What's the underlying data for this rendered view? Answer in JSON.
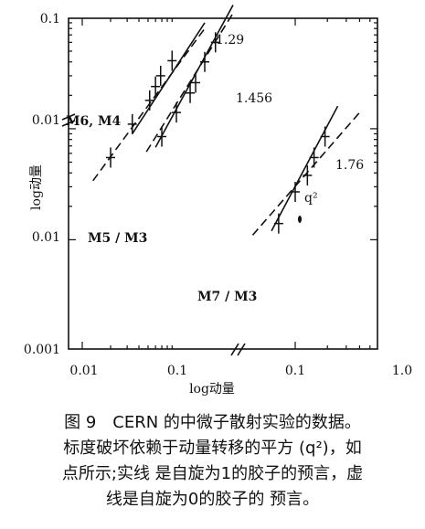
{
  "chart_data": {
    "type": "scatter",
    "log_log": true,
    "ylabel": "log动量",
    "xlabel": "log动量",
    "y_tick_labels": [
      "0.1",
      "0.01",
      "0.01",
      "0.001"
    ],
    "x_tick_labels": [
      "0.01",
      "0.1",
      "0.1",
      "1.0"
    ],
    "series": [
      {
        "name": "M6, M4",
        "slope_label": "1.29",
        "x_range_units": "0.01 – 0.1",
        "points": [
          {
            "x": 0.02,
            "y": 0.0055
          },
          {
            "x": 0.034,
            "y": 0.011
          },
          {
            "x": 0.052,
            "y": 0.018
          },
          {
            "x": 0.06,
            "y": 0.024
          },
          {
            "x": 0.068,
            "y": 0.03
          },
          {
            "x": 0.09,
            "y": 0.041
          }
        ],
        "solid_fit": [
          [
            0.034,
            0.009
          ],
          [
            0.2,
            0.09
          ]
        ],
        "dashed_fit": [
          [
            0.013,
            0.0034
          ],
          [
            0.2,
            0.08
          ]
        ]
      },
      {
        "name": "M5 / M3",
        "slope_label": "1.456",
        "x_range_units": "0.01 – 0.1",
        "points": [
          {
            "x": 0.07,
            "y": 0.0085
          },
          {
            "x": 0.1,
            "y": 0.014
          },
          {
            "x": 0.14,
            "y": 0.021
          },
          {
            "x": 0.16,
            "y": 0.026
          },
          {
            "x": 0.2,
            "y": 0.04
          },
          {
            "x": 0.26,
            "y": 0.06
          }
        ],
        "solid_fit": [
          [
            0.06,
            0.0068
          ],
          [
            0.4,
            0.13
          ]
        ],
        "dashed_fit": [
          [
            0.048,
            0.0062
          ],
          [
            0.4,
            0.11
          ]
        ]
      },
      {
        "name": "M7 / M3",
        "slope_label": "1.76",
        "x_range_units": "0.1 – 1.0",
        "annotation": "q²",
        "points": [
          {
            "x": 0.07,
            "y": 0.0014
          },
          {
            "x": 0.1,
            "y": 0.0027
          },
          {
            "x": 0.13,
            "y": 0.0038
          },
          {
            "x": 0.15,
            "y": 0.0055
          },
          {
            "x": 0.19,
            "y": 0.0085
          }
        ],
        "solid_fit": [
          [
            0.06,
            0.0012
          ],
          [
            0.25,
            0.016
          ]
        ],
        "dashed_fit": [
          [
            0.04,
            0.0011
          ],
          [
            0.4,
            0.014
          ]
        ]
      }
    ]
  },
  "caption": {
    "lines": [
      "图 9　CERN 的中微子散射实验的数据。",
      "标度破坏依赖于动量转移的平方 (q²)，如",
      "点所示;实线 是自旋为1的胶子的预言，虚",
      "线是自旋为0的胶子的 预言。"
    ]
  }
}
